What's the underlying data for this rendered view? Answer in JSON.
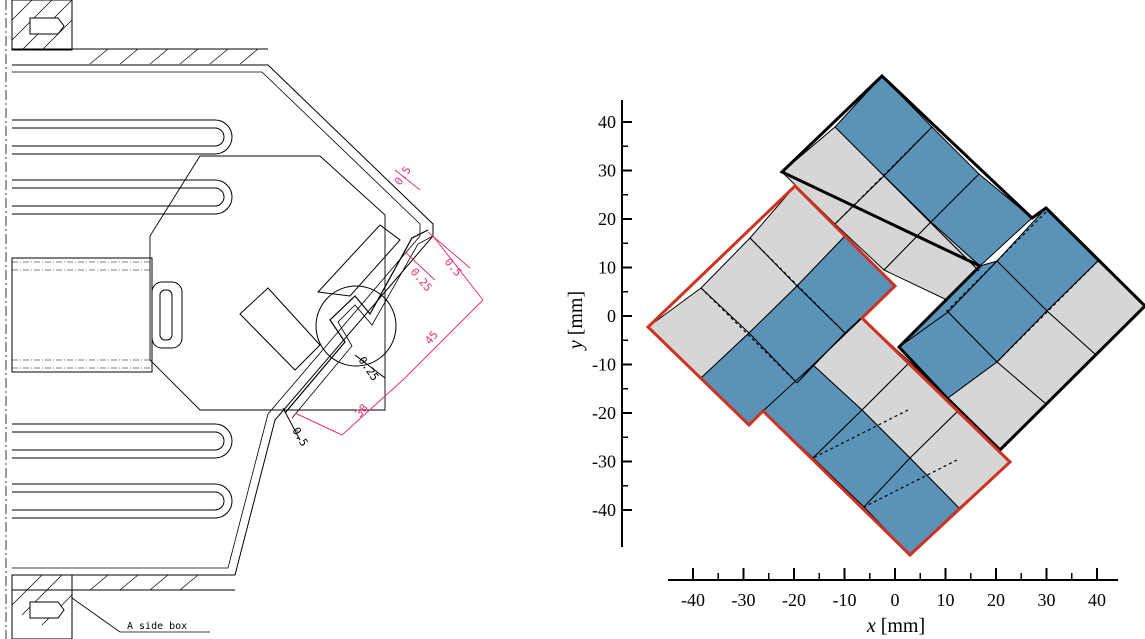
{
  "drawing": {
    "dims": [
      "0.5",
      "0.5",
      "0.25",
      "45",
      "0.25",
      "38",
      "0.5"
    ],
    "callout": "A side box"
  },
  "plot": {
    "yticks": [
      "40",
      "30",
      "20",
      "10",
      "0",
      "-10",
      "-20",
      "-30",
      "-40"
    ],
    "xticks": [
      "-40",
      "-30",
      "-20",
      "-10",
      "0",
      "10",
      "20",
      "30",
      "40"
    ],
    "ylabel_var": "y",
    "ylabel_unit": " [mm]",
    "xlabel_var": "x",
    "xlabel_unit": " [mm]",
    "colors": {
      "blue": "#5b93b8",
      "grey": "#d6d6d6",
      "outline_red": "#cc3322",
      "outline_black": "#000000"
    }
  }
}
